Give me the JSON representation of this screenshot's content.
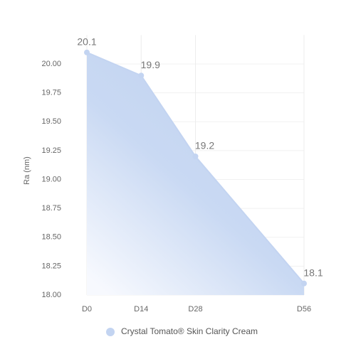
{
  "chart_data": {
    "type": "area",
    "y_label": "Ra (nm)",
    "x": [
      0,
      14,
      28,
      56
    ],
    "xlim": [
      0,
      56
    ],
    "xticks": [
      {
        "value": 0,
        "label": "D0"
      },
      {
        "value": 14,
        "label": "D14"
      },
      {
        "value": 28,
        "label": "D28"
      },
      {
        "value": 56,
        "label": "D56"
      }
    ],
    "ylim": [
      18,
      20.25
    ],
    "yticks": [
      {
        "value": 18,
        "label": "18.00"
      },
      {
        "value": 18.25,
        "label": "18.25"
      },
      {
        "value": 18.5,
        "label": "18.50"
      },
      {
        "value": 18.75,
        "label": "18.75"
      },
      {
        "value": 19,
        "label": "19.00"
      },
      {
        "value": 19.25,
        "label": "19.25"
      },
      {
        "value": 19.5,
        "label": "19.50"
      },
      {
        "value": 19.75,
        "label": "19.75"
      },
      {
        "value": 20,
        "label": "20.00"
      }
    ],
    "grid": true,
    "legend": "bottom",
    "series": [
      {
        "name": "Crystal Tomato® Skin Clarity Cream",
        "color": "#c3d4f1",
        "values": [
          20.1,
          19.9,
          19.2,
          18.1
        ]
      }
    ]
  }
}
